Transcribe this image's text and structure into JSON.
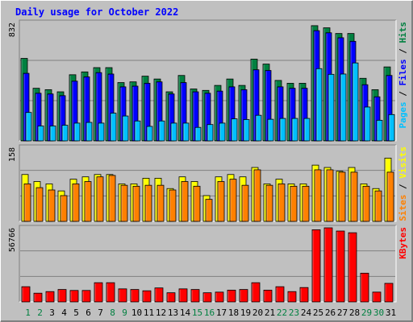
{
  "chart_data": {
    "type": "bar",
    "title": "Daily usage for October 2022",
    "x": [
      "1",
      "2",
      "3",
      "4",
      "5",
      "6",
      "7",
      "8",
      "9",
      "10",
      "11",
      "12",
      "13",
      "14",
      "15",
      "16",
      "17",
      "18",
      "19",
      "20",
      "21",
      "22",
      "23",
      "24",
      "25",
      "26",
      "27",
      "28",
      "29",
      "30",
      "31"
    ],
    "weekend_days": [
      "1",
      "2",
      "8",
      "9",
      "15",
      "16",
      "22",
      "23",
      "29",
      "30"
    ],
    "grid": true,
    "panels": [
      {
        "name": "hits-files-pages",
        "ymax_label": "832",
        "ymax": 832,
        "legend": [
          {
            "text": "Pages",
            "color": "#00c0ff"
          },
          {
            "text": " / ",
            "color": "#000000"
          },
          {
            "text": "Files",
            "color": "#0000ff"
          },
          {
            "text": " / ",
            "color": "#000000"
          },
          {
            "text": "Hits",
            "color": "#008040"
          }
        ],
        "series": [
          {
            "name": "Hits",
            "color": "#008040",
            "values": [
              580,
              370,
              360,
              345,
              465,
              485,
              515,
              515,
              410,
              415,
              455,
              435,
              345,
              460,
              365,
              355,
              390,
              435,
              390,
              575,
              540,
              425,
              405,
              405,
              810,
              795,
              755,
              755,
              440,
              360,
              520
            ]
          },
          {
            "name": "Files",
            "color": "#0000ff",
            "values": [
              475,
              335,
              330,
              318,
              420,
              450,
              480,
              470,
              380,
              385,
              405,
              415,
              330,
              410,
              345,
              335,
              350,
              380,
              360,
              500,
              495,
              380,
              370,
              370,
              775,
              760,
              725,
              700,
              395,
              310,
              460
            ]
          },
          {
            "name": "Pages",
            "color": "#00c0ff",
            "values": [
              200,
              105,
              105,
              110,
              125,
              130,
              125,
              195,
              175,
              140,
              102,
              140,
              125,
              125,
              95,
              115,
              125,
              155,
              150,
              180,
              152,
              158,
              158,
              158,
              508,
              468,
              470,
              548,
              238,
              145,
              185
            ]
          }
        ]
      },
      {
        "name": "visits-sites",
        "ymax_label": "158",
        "ymax": 158,
        "legend": [
          {
            "text": "Sites",
            "color": "#ff8000"
          },
          {
            "text": " / ",
            "color": "#000000"
          },
          {
            "text": "Visits",
            "color": "#ffff00"
          }
        ],
        "series": [
          {
            "name": "Visits",
            "color": "#ffff00",
            "values": [
              100,
              85,
              80,
              65,
              90,
              95,
              100,
              100,
              80,
              80,
              92,
              92,
              70,
              95,
              85,
              55,
              95,
              100,
              95,
              115,
              80,
              90,
              80,
              80,
              120,
              115,
              107,
              115,
              80,
              70,
              135
            ]
          },
          {
            "name": "Sites",
            "color": "#ff8000",
            "values": [
              80,
              72,
              67,
              55,
              80,
              85,
              95,
              98,
              77,
              75,
              77,
              77,
              67,
              85,
              75,
              47,
              85,
              90,
              77,
              110,
              77,
              80,
              75,
              75,
              110,
              110,
              105,
              105,
              75,
              65,
              105
            ]
          }
        ]
      },
      {
        "name": "kbytes",
        "ymax_label": "56766",
        "ymax": 56766,
        "legend": [
          {
            "text": "KBytes",
            "color": "#ff0000"
          }
        ],
        "series": [
          {
            "name": "KBytes",
            "color": "#ff0000",
            "values": [
              11640,
              6670,
              7890,
              9500,
              8760,
              8760,
              14700,
              14700,
              9980,
              9500,
              8510,
              10700,
              7000,
              9980,
              9500,
              7000,
              7490,
              9000,
              9500,
              14700,
              9000,
              11640,
              7890,
              11000,
              55280,
              56766,
              54300,
              53000,
              22000,
              7500,
              14200
            ]
          }
        ]
      }
    ]
  }
}
